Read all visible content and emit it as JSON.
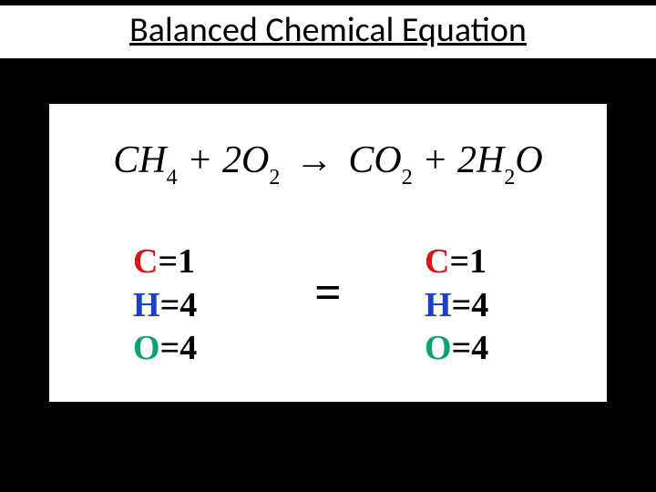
{
  "title": "Balanced Chemical Equation",
  "background_color": "#000000",
  "panel": {
    "background_color": "#ffffff",
    "border_color": "#000000",
    "border_width": 4
  },
  "equation": {
    "font_family": "Times New Roman",
    "font_style": "italic",
    "font_size": 42,
    "color": "#000000",
    "terms": [
      {
        "coef": "",
        "elem": "CH",
        "sub": "4"
      },
      {
        "op": "+"
      },
      {
        "coef": "2",
        "elem": "O",
        "sub": "2"
      },
      {
        "arrow": "→"
      },
      {
        "coef": "",
        "elem": "CO",
        "sub": "2"
      },
      {
        "op": "+"
      },
      {
        "coef": "2",
        "elem": "H",
        "sub": "2",
        "tail": "O"
      }
    ]
  },
  "tally_font_size": 38,
  "tally_line_height": 1.25,
  "element_colors": {
    "C": "#d11a1a",
    "H": "#1a3fcf",
    "O": "#0aa36b"
  },
  "tally_left": {
    "C": "1",
    "H": "4",
    "O": "4"
  },
  "tally_right": {
    "C": "1",
    "H": "4",
    "O": "4"
  },
  "center_equals": "=",
  "elements_order": [
    "C",
    "H",
    "O"
  ]
}
